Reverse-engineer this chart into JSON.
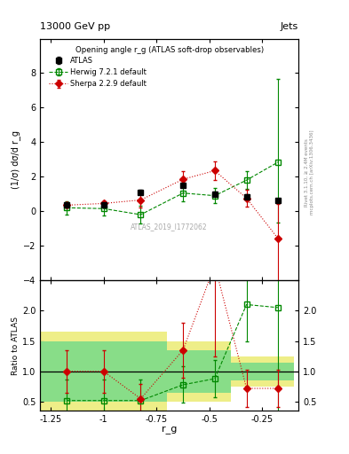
{
  "title_top": "13000 GeV pp",
  "title_top_right": "Jets",
  "plot_title": "Opening angle r_g (ATLAS soft-drop observables)",
  "ylabel_main": "(1/σ) dσ/d r_g",
  "ylabel_ratio": "Ratio to ATLAS",
  "xlabel": "r_g",
  "watermark": "ATLAS_2019_I1772062",
  "right_label": "Rivet 3.1.10, ≥ 2.4M events",
  "right_label2": "mcplots.cern.ch [arXiv:1306.3436]",
  "atlas_x": [
    -1.175,
    -1.0,
    -0.825,
    -0.625,
    -0.475,
    -0.325,
    -0.175
  ],
  "atlas_y": [
    0.35,
    0.35,
    1.1,
    1.5,
    1.0,
    0.85,
    0.65
  ],
  "atlas_yerr": [
    0.12,
    0.12,
    0.12,
    0.12,
    0.12,
    0.12,
    0.1
  ],
  "herwig_x": [
    -1.175,
    -1.0,
    -0.825,
    -0.625,
    -0.475,
    -0.325,
    -0.175
  ],
  "herwig_y": [
    0.2,
    0.15,
    -0.2,
    1.05,
    0.9,
    1.8,
    2.85
  ],
  "herwig_yerr_lo": [
    0.4,
    0.4,
    0.5,
    0.45,
    0.45,
    0.5,
    3.5
  ],
  "herwig_yerr_hi": [
    0.4,
    0.4,
    0.5,
    0.45,
    0.45,
    0.5,
    4.8
  ],
  "sherpa_x": [
    -1.175,
    -1.0,
    -0.825,
    -0.625,
    -0.475,
    -0.325,
    -0.175
  ],
  "sherpa_y": [
    0.35,
    0.45,
    0.65,
    1.85,
    2.35,
    0.75,
    -1.6
  ],
  "sherpa_yerr_lo": [
    0.12,
    0.12,
    0.45,
    0.45,
    0.55,
    0.5,
    2.5
  ],
  "sherpa_yerr_hi": [
    0.12,
    0.12,
    0.45,
    0.45,
    0.55,
    0.5,
    2.0
  ],
  "ratio_herwig_x": [
    -1.175,
    -1.0,
    -0.825,
    -0.625,
    -0.475,
    -0.325,
    -0.175
  ],
  "ratio_herwig_y": [
    0.52,
    0.52,
    0.52,
    0.78,
    0.88,
    2.1,
    2.05
  ],
  "ratio_herwig_yerr_lo": [
    0.35,
    0.35,
    0.35,
    0.3,
    0.3,
    0.6,
    1.8
  ],
  "ratio_herwig_yerr_hi": [
    0.35,
    0.35,
    0.35,
    0.3,
    0.3,
    0.6,
    0.5
  ],
  "ratio_sherpa_x": [
    -1.175,
    -1.0,
    -0.825,
    -0.625,
    -0.475,
    -0.325,
    -0.175
  ],
  "ratio_sherpa_y": [
    1.0,
    1.0,
    0.55,
    1.35,
    2.75,
    0.72,
    0.72
  ],
  "ratio_sherpa_yerr_lo": [
    0.35,
    0.35,
    0.25,
    0.45,
    1.5,
    0.3,
    0.3
  ],
  "ratio_sherpa_yerr_hi": [
    0.35,
    0.35,
    0.25,
    0.45,
    1.5,
    0.3,
    0.3
  ],
  "yellow_band_edges": [
    -1.3,
    -1.1,
    -0.9,
    -0.7,
    -0.55,
    -0.4,
    -0.25,
    -0.1
  ],
  "yellow_band_y_lo": [
    0.35,
    0.35,
    0.35,
    0.5,
    0.5,
    0.75,
    0.75,
    0.75
  ],
  "yellow_band_y_hi": [
    1.65,
    1.65,
    1.65,
    1.5,
    1.5,
    1.25,
    1.25,
    1.25
  ],
  "green_band_edges": [
    -1.3,
    -1.1,
    -0.9,
    -0.7,
    -0.55,
    -0.4,
    -0.25,
    -0.1
  ],
  "green_band_y_lo": [
    0.5,
    0.5,
    0.5,
    0.65,
    0.65,
    0.85,
    0.85,
    0.85
  ],
  "green_band_y_hi": [
    1.5,
    1.5,
    1.5,
    1.35,
    1.35,
    1.15,
    1.15,
    1.15
  ],
  "xlim": [
    -1.3,
    -0.08
  ],
  "ylim_main": [
    -4,
    10
  ],
  "ylim_ratio": [
    0.35,
    2.5
  ],
  "yticks_main": [
    -4,
    -2,
    0,
    2,
    4,
    6,
    8
  ],
  "yticks_ratio": [
    0.5,
    1.0,
    1.5,
    2.0
  ],
  "xticks": [
    -1.25,
    -1.0,
    -0.75,
    -0.5,
    -0.25
  ],
  "xticklabels": [
    "-1.25",
    "-1",
    "-0.75",
    "-0.5",
    "-0.25"
  ],
  "atlas_color": "black",
  "herwig_color": "#008800",
  "sherpa_color": "#cc0000",
  "green_band_color": "#88dd88",
  "yellow_band_color": "#eeee88"
}
